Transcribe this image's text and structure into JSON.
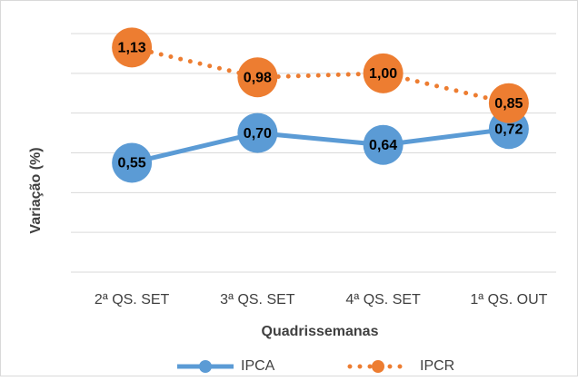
{
  "chart_data": {
    "type": "line",
    "categories": [
      "2ª QS. SET",
      "3ª QS. SET",
      "4ª QS. SET",
      "1ª QS. OUT"
    ],
    "series": [
      {
        "name": "IPCA",
        "color": "#5b9bd5",
        "style": "solid",
        "values": [
          0.55,
          0.7,
          0.64,
          0.72
        ],
        "value_labels": [
          "0,55",
          "0,70",
          "0,64",
          "0,72"
        ]
      },
      {
        "name": "IPCR",
        "color": "#ed7d31",
        "style": "dotted",
        "values": [
          1.13,
          0.98,
          1.0,
          0.85
        ],
        "value_labels": [
          "1,13",
          "0,98",
          "1,00",
          "0,85"
        ]
      }
    ],
    "xlabel": "Quadrissemanas",
    "ylabel": "Variação (%)",
    "ylim": [
      0,
      1.2
    ],
    "yticks": [
      0,
      0.2,
      0.4,
      0.6,
      0.8,
      1.0,
      1.2
    ],
    "grid": true,
    "legend": "bottom"
  }
}
